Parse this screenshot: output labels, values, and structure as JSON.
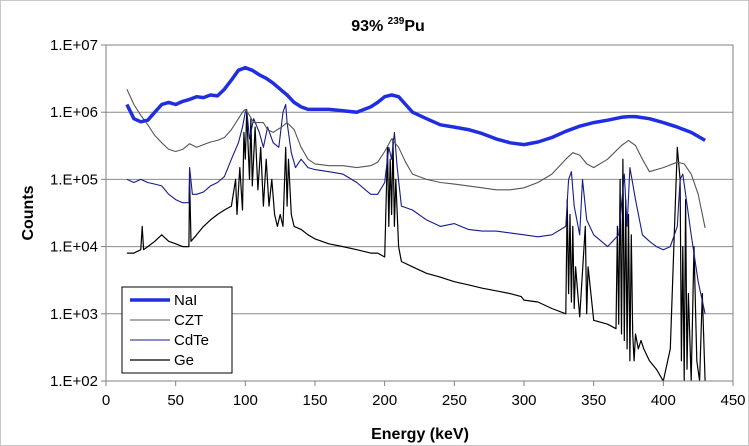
{
  "chart_data": {
    "type": "line",
    "title": {
      "prefix": "93% ",
      "superscript": "239",
      "suffix": "Pu"
    },
    "xlabel": "Energy (keV)",
    "ylabel": "Counts",
    "xlim": [
      0,
      450
    ],
    "ylim": [
      100,
      10000000
    ],
    "y_scale": "log",
    "x_ticks": [
      "0",
      "50",
      "100",
      "150",
      "200",
      "250",
      "300",
      "350",
      "400",
      "450"
    ],
    "x_tick_values": [
      0,
      50,
      100,
      150,
      200,
      250,
      300,
      350,
      400,
      450
    ],
    "y_ticks": [
      "1.E+02",
      "1.E+03",
      "1.E+04",
      "1.E+05",
      "1.E+06",
      "1.E+07"
    ],
    "y_tick_values": [
      100,
      1000,
      10000,
      100000,
      1000000,
      10000000
    ],
    "grid": "horizontal",
    "legend_position": "bottom-left",
    "series": [
      {
        "name": "NaI",
        "color": "#1e2ee0",
        "x": [
          15,
          20,
          25,
          30,
          35,
          40,
          45,
          50,
          55,
          60,
          65,
          70,
          75,
          80,
          85,
          90,
          95,
          100,
          105,
          110,
          115,
          120,
          125,
          130,
          135,
          140,
          145,
          150,
          160,
          170,
          180,
          190,
          195,
          200,
          205,
          210,
          215,
          220,
          230,
          240,
          250,
          260,
          270,
          280,
          290,
          300,
          310,
          320,
          330,
          340,
          350,
          360,
          370,
          375,
          380,
          390,
          400,
          410,
          420,
          430
        ],
        "y": [
          1300000,
          800000,
          720000,
          760000,
          1000000,
          1300000,
          1400000,
          1300000,
          1450000,
          1550000,
          1700000,
          1650000,
          1800000,
          1750000,
          2200000,
          3000000,
          4200000,
          4600000,
          4200000,
          3600000,
          3200000,
          2700000,
          2200000,
          1800000,
          1400000,
          1200000,
          1100000,
          1100000,
          1100000,
          1050000,
          1000000,
          1200000,
          1400000,
          1700000,
          1800000,
          1700000,
          1300000,
          1000000,
          800000,
          650000,
          600000,
          550000,
          480000,
          400000,
          350000,
          330000,
          360000,
          420000,
          520000,
          620000,
          700000,
          760000,
          840000,
          860000,
          860000,
          800000,
          700000,
          600000,
          500000,
          380000
        ]
      },
      {
        "name": "CZT",
        "color": "#555555",
        "x": [
          15,
          20,
          25,
          30,
          35,
          40,
          45,
          50,
          55,
          60,
          65,
          70,
          75,
          80,
          85,
          90,
          95,
          98,
          100,
          103,
          106,
          110,
          113,
          116,
          120,
          123,
          126,
          130,
          135,
          140,
          145,
          150,
          160,
          170,
          180,
          190,
          195,
          200,
          205,
          210,
          215,
          220,
          230,
          240,
          250,
          260,
          270,
          280,
          290,
          300,
          310,
          320,
          330,
          335,
          340,
          345,
          350,
          360,
          370,
          375,
          380,
          385,
          390,
          400,
          410,
          415,
          420,
          425,
          430
        ],
        "y": [
          2200000,
          1300000,
          900000,
          650000,
          450000,
          350000,
          280000,
          260000,
          280000,
          340000,
          300000,
          330000,
          360000,
          380000,
          420000,
          550000,
          800000,
          1000000,
          1100000,
          900000,
          700000,
          700000,
          700000,
          550000,
          500000,
          550000,
          600000,
          700000,
          550000,
          300000,
          200000,
          170000,
          160000,
          160000,
          150000,
          160000,
          180000,
          260000,
          400000,
          300000,
          180000,
          120000,
          100000,
          90000,
          85000,
          80000,
          75000,
          70000,
          70000,
          75000,
          90000,
          120000,
          200000,
          250000,
          230000,
          170000,
          150000,
          200000,
          320000,
          380000,
          320000,
          200000,
          130000,
          150000,
          180000,
          170000,
          120000,
          60000,
          19000
        ]
      },
      {
        "name": "CdTe",
        "color": "#141c8c",
        "x": [
          15,
          20,
          25,
          30,
          35,
          40,
          45,
          50,
          55,
          59.5,
          60,
          62,
          65,
          70,
          75,
          80,
          85,
          90,
          95,
          98,
          100,
          101,
          103,
          106,
          110,
          113,
          116,
          120,
          124,
          127,
          129,
          130,
          133,
          136,
          140,
          145,
          150,
          160,
          170,
          180,
          190,
          195,
          200,
          203,
          205,
          207,
          209,
          212,
          220,
          230,
          240,
          250,
          260,
          270,
          280,
          290,
          300,
          310,
          320,
          330,
          332,
          334,
          336,
          340,
          342,
          345,
          350,
          360,
          368,
          372,
          374,
          376,
          380,
          385,
          390,
          395,
          400,
          405,
          410,
          412,
          414,
          416,
          420,
          425,
          430
        ],
        "y": [
          100000,
          90000,
          100000,
          90000,
          85000,
          80000,
          60000,
          50000,
          45000,
          45000,
          150000,
          60000,
          60000,
          65000,
          80000,
          90000,
          110000,
          200000,
          350000,
          600000,
          1000000,
          1100000,
          400000,
          800000,
          500000,
          300000,
          600000,
          350000,
          300000,
          1000000,
          1300000,
          700000,
          250000,
          150000,
          200000,
          150000,
          140000,
          130000,
          120000,
          90000,
          60000,
          60000,
          90000,
          300000,
          200000,
          500000,
          150000,
          40000,
          35000,
          25000,
          20000,
          22000,
          18000,
          17000,
          17000,
          16000,
          15000,
          14000,
          15000,
          20000,
          100000,
          130000,
          40000,
          15000,
          100000,
          25000,
          15000,
          10000,
          15000,
          120000,
          20000,
          150000,
          50000,
          15000,
          12000,
          10000,
          9000,
          10000,
          20000,
          100000,
          120000,
          60000,
          15000,
          3000,
          1000
        ]
      },
      {
        "name": "Ge",
        "color": "#000000",
        "x": [
          15,
          20,
          25,
          26,
          27,
          30,
          35,
          40,
          45,
          50,
          55,
          59.5,
          60,
          61,
          65,
          70,
          75,
          80,
          85,
          90,
          93,
          94,
          96,
          98,
          99,
          100,
          101,
          103,
          104,
          105,
          107,
          109,
          111,
          113,
          115,
          117,
          119,
          121,
          123,
          125,
          127,
          129,
          130,
          131,
          133,
          135,
          140,
          145,
          150,
          160,
          170,
          180,
          190,
          195,
          200,
          202,
          203,
          204,
          205,
          206,
          207,
          208,
          210,
          212,
          220,
          230,
          240,
          250,
          260,
          270,
          280,
          290,
          298,
          300,
          310,
          320,
          330,
          331,
          332,
          333,
          334,
          335,
          336,
          337,
          340,
          344,
          345,
          346,
          350,
          360,
          366,
          367,
          368,
          369,
          370,
          371,
          372,
          373,
          374,
          375,
          376,
          377,
          378,
          379,
          380,
          382,
          384,
          386,
          390,
          395,
          400,
          405,
          410,
          412,
          413,
          414,
          415,
          416,
          417,
          418,
          420,
          422,
          424,
          426,
          428,
          430
        ],
        "y": [
          8000,
          8000,
          9000,
          20000,
          9000,
          10000,
          12000,
          15000,
          12000,
          11000,
          10000,
          10000,
          100000,
          12000,
          15000,
          20000,
          25000,
          30000,
          35000,
          40000,
          100000,
          30000,
          150000,
          35000,
          500000,
          200000,
          1000000,
          100000,
          800000,
          80000,
          600000,
          70000,
          300000,
          40000,
          200000,
          40000,
          100000,
          30000,
          20000,
          30000,
          20000,
          300000,
          40000,
          200000,
          30000,
          20000,
          18000,
          15000,
          13000,
          11000,
          10000,
          9000,
          8000,
          8000,
          7000,
          300000,
          20000,
          200000,
          30000,
          400000,
          20000,
          100000,
          10000,
          6000,
          5000,
          4000,
          3500,
          3000,
          2700,
          2400,
          2200,
          2000,
          1800,
          1600,
          1500,
          1200,
          1000,
          50000,
          2000,
          30000,
          1500,
          20000,
          1200,
          5000,
          900,
          20000,
          1000,
          5000,
          800,
          700,
          600,
          20000,
          700,
          100000,
          500,
          200000,
          400,
          50000,
          300,
          30000,
          200,
          15000,
          500,
          200,
          500,
          300,
          400,
          300,
          200,
          150,
          100,
          300,
          300000,
          100000,
          200,
          10000,
          100,
          50000,
          150,
          2000,
          100,
          10000,
          200,
          100,
          2000,
          100
        ]
      }
    ]
  }
}
